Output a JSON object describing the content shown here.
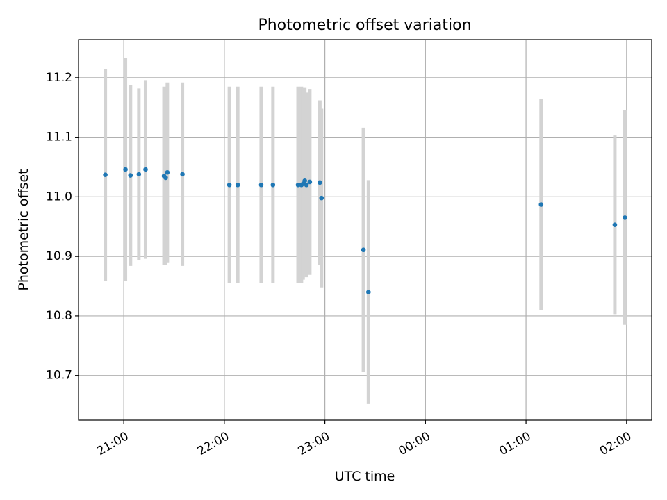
{
  "chart_data": {
    "type": "scatter",
    "title": "Photometric offset variation",
    "xlabel": "UTC time",
    "ylabel": "Photometric offset",
    "xlim": [
      "2023-01-01 20:33",
      "2023-01-02 02:15"
    ],
    "ylim": [
      10.625,
      11.264
    ],
    "grid": true,
    "x_ticks": [
      {
        "t": "2023-01-01 21:00",
        "label": "21:00"
      },
      {
        "t": "2023-01-01 22:00",
        "label": "22:00"
      },
      {
        "t": "2023-01-01 23:00",
        "label": "23:00"
      },
      {
        "t": "2023-01-02 00:00",
        "label": "00:00"
      },
      {
        "t": "2023-01-02 01:00",
        "label": "01:00"
      },
      {
        "t": "2023-01-02 02:00",
        "label": "02:00"
      }
    ],
    "y_ticks": [
      10.7,
      10.8,
      10.9,
      11.0,
      11.1,
      11.2
    ],
    "y_tick_labels": [
      "10.7",
      "10.8",
      "10.9",
      "11.0",
      "11.1",
      "11.2"
    ],
    "colors": {
      "point": "#1f77b4",
      "errorbar": "#d3d3d3",
      "grid": "#b0b0b0"
    },
    "points": [
      {
        "t": "2023-01-01 20:49",
        "y": 11.037,
        "yerr": 0.178
      },
      {
        "t": "2023-01-01 21:01",
        "y": 11.046,
        "yerr": 0.187
      },
      {
        "t": "2023-01-01 21:04",
        "y": 11.036,
        "yerr": 0.152
      },
      {
        "t": "2023-01-01 21:09",
        "y": 11.038,
        "yerr": 0.144
      },
      {
        "t": "2023-01-01 21:13",
        "y": 11.046,
        "yerr": 0.15
      },
      {
        "t": "2023-01-01 21:24",
        "y": 11.035,
        "yerr": 0.15
      },
      {
        "t": "2023-01-01 21:25",
        "y": 11.032,
        "yerr": 0.146
      },
      {
        "t": "2023-01-01 21:26",
        "y": 11.041,
        "yerr": 0.151
      },
      {
        "t": "2023-01-01 21:35",
        "y": 11.038,
        "yerr": 0.154
      },
      {
        "t": "2023-01-01 22:03",
        "y": 11.02,
        "yerr": 0.165
      },
      {
        "t": "2023-01-01 22:08",
        "y": 11.02,
        "yerr": 0.165
      },
      {
        "t": "2023-01-01 22:22",
        "y": 11.02,
        "yerr": 0.165
      },
      {
        "t": "2023-01-01 22:29",
        "y": 11.02,
        "yerr": 0.165
      },
      {
        "t": "2023-01-01 22:44",
        "y": 11.02,
        "yerr": 0.165
      },
      {
        "t": "2023-01-01 22:46",
        "y": 11.02,
        "yerr": 0.165
      },
      {
        "t": "2023-01-01 22:47",
        "y": 11.022,
        "yerr": 0.161
      },
      {
        "t": "2023-01-01 22:48",
        "y": 11.027,
        "yerr": 0.157
      },
      {
        "t": "2023-01-01 22:49",
        "y": 11.02,
        "yerr": 0.155
      },
      {
        "t": "2023-01-01 22:51",
        "y": 11.025,
        "yerr": 0.156
      },
      {
        "t": "2023-01-01 22:57",
        "y": 11.024,
        "yerr": 0.138
      },
      {
        "t": "2023-01-01 22:58",
        "y": 10.998,
        "yerr": 0.15
      },
      {
        "t": "2023-01-01 23:23",
        "y": 10.911,
        "yerr": 0.205
      },
      {
        "t": "2023-01-01 23:26",
        "y": 10.84,
        "yerr": 0.188
      },
      {
        "t": "2023-01-02 01:09",
        "y": 10.987,
        "yerr": 0.177
      },
      {
        "t": "2023-01-02 01:53",
        "y": 10.953,
        "yerr": 0.15
      },
      {
        "t": "2023-01-02 01:59",
        "y": 10.965,
        "yerr": 0.18
      }
    ]
  }
}
